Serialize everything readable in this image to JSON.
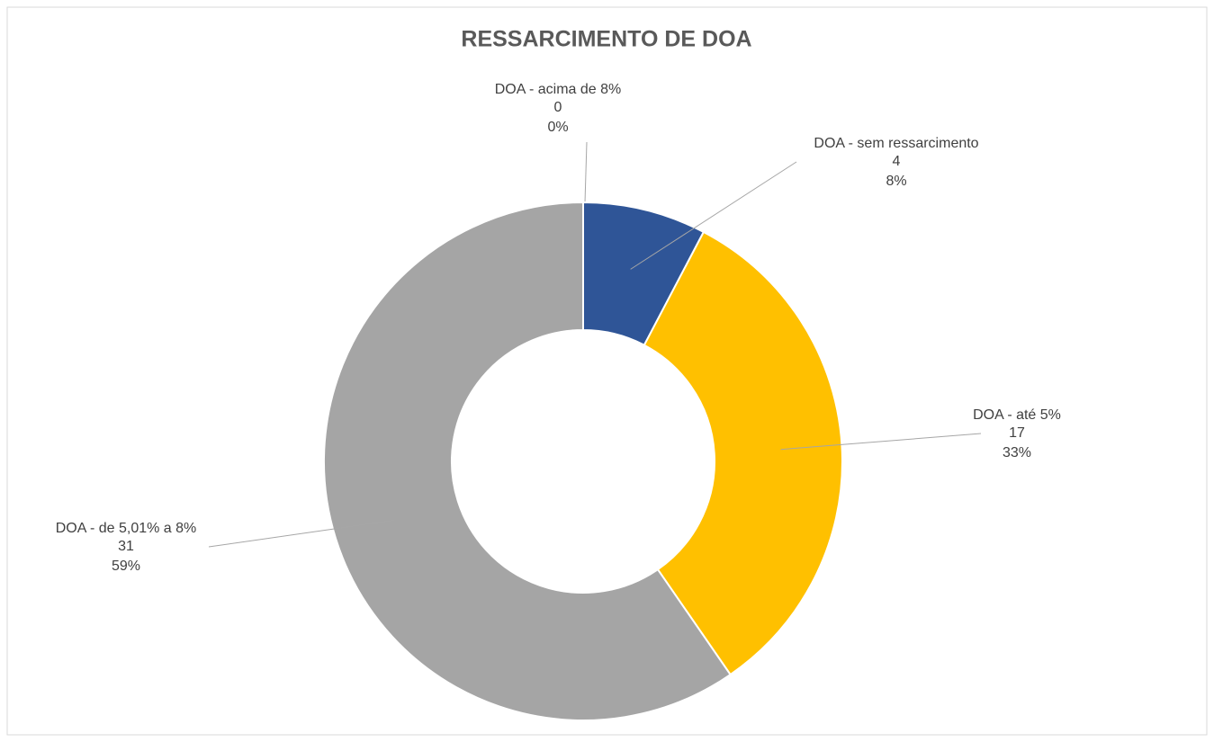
{
  "chart_data": {
    "type": "donut",
    "title": "RESSARCIMENTO DE DOA",
    "categories": [
      "DOA - acima de 8%",
      "DOA - sem ressarcimento",
      "DOA - até 5%",
      "DOA - de 5,01% a 8%"
    ],
    "values": [
      0,
      4,
      17,
      31
    ],
    "percent_labels": [
      "0%",
      "8%",
      "33%",
      "59%"
    ],
    "colors": [
      "#ED7D31",
      "#2F5597",
      "#FFC000",
      "#A5A5A5"
    ]
  }
}
